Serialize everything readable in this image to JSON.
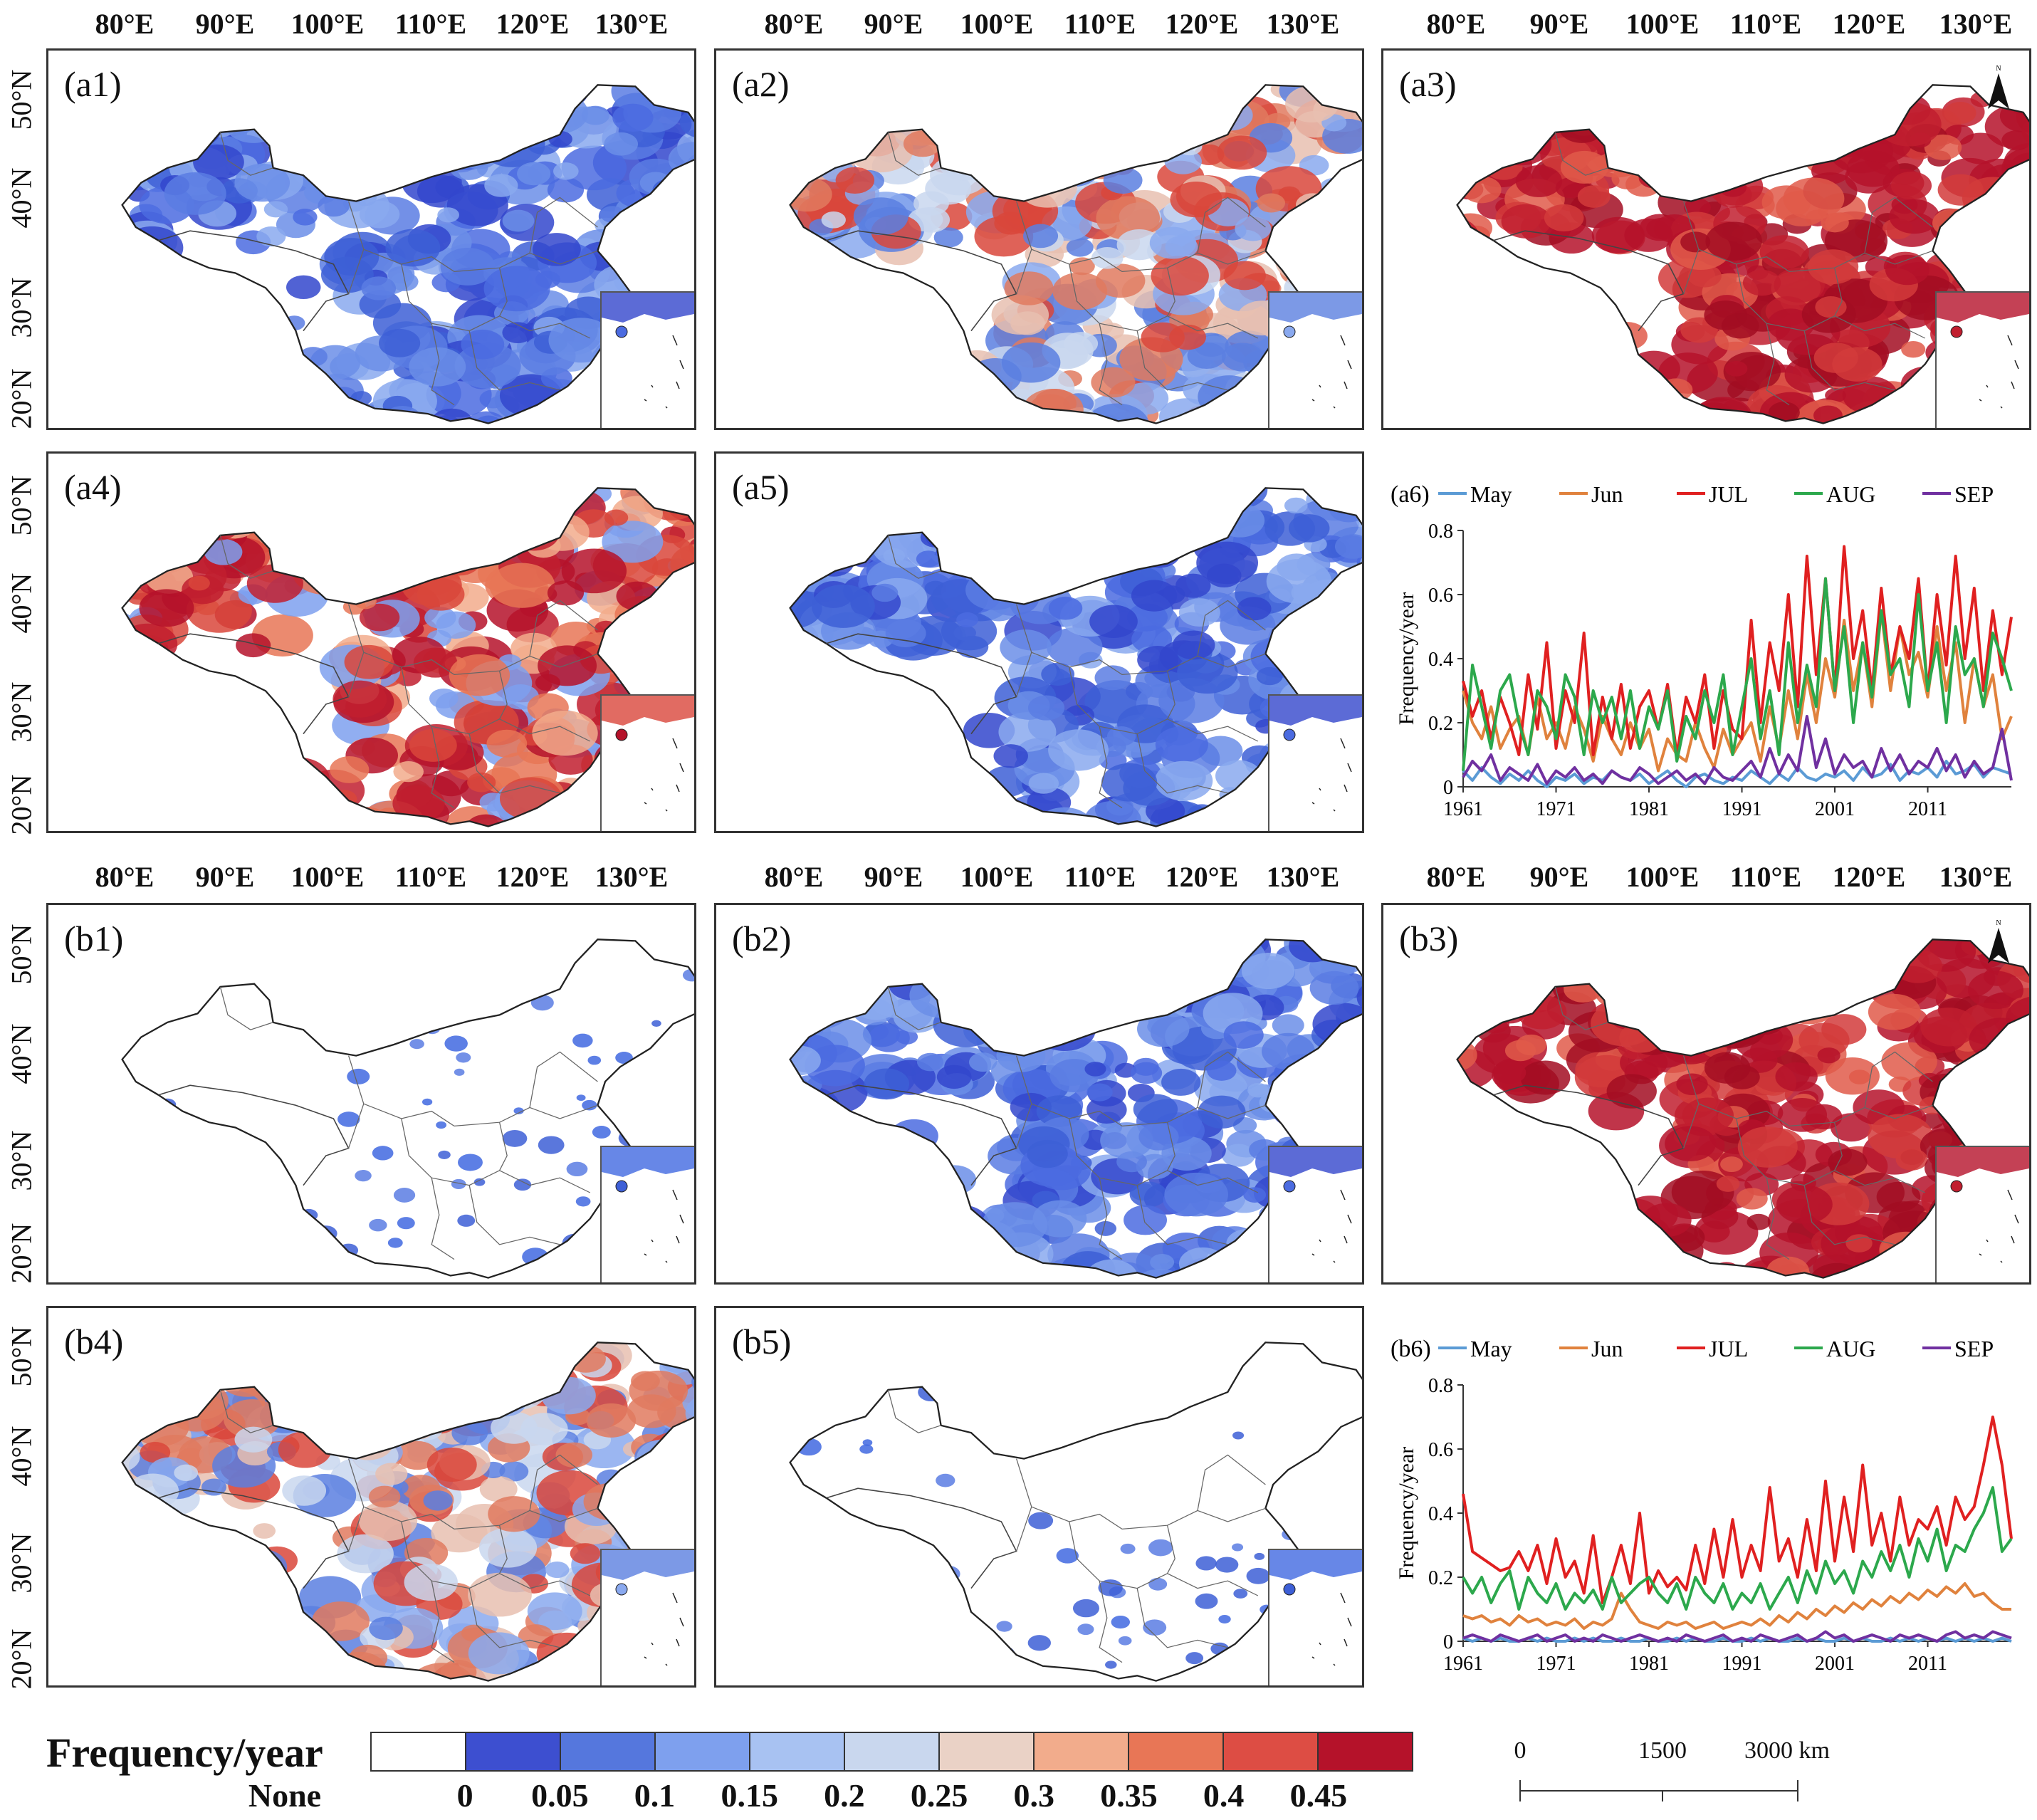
{
  "longitude_labels": [
    "80°E",
    "90°E",
    "100°E",
    "110°E",
    "120°E",
    "130°E"
  ],
  "latitude_labels": [
    "50°N",
    "40°N",
    "30°N",
    "20°N"
  ],
  "panels_a": [
    {
      "label": "(a1)",
      "theme": "blue",
      "color": "#3d5fd6"
    },
    {
      "label": "(a2)",
      "theme": "mixed",
      "color": "#e07a5f"
    },
    {
      "label": "(a3)",
      "theme": "red",
      "color": "#b5122a"
    },
    {
      "label": "(a4)",
      "theme": "mixed-red",
      "color": "#d9463b"
    },
    {
      "label": "(a5)",
      "theme": "blue",
      "color": "#3b5bd6"
    }
  ],
  "panels_b": [
    {
      "label": "(b1)",
      "theme": "sparse",
      "color": "#4169e1"
    },
    {
      "label": "(b2)",
      "theme": "blue",
      "color": "#5b7fe0"
    },
    {
      "label": "(b3)",
      "theme": "red",
      "color": "#b5122a"
    },
    {
      "label": "(b4)",
      "theme": "mixed",
      "color": "#6f8fe3"
    },
    {
      "label": "(b5)",
      "theme": "sparse",
      "color": "#3d5fd6"
    }
  ],
  "north_label": "N",
  "chart_data": [
    {
      "label": "(a6)",
      "type": "line",
      "ylabel": "Frequency/year",
      "ylim": [
        0,
        0.8
      ],
      "yticks": [
        "0",
        "0.2",
        "0.4",
        "0.6",
        "0.8"
      ],
      "xticks": [
        "1961",
        "1971",
        "1981",
        "1991",
        "2001",
        "2011"
      ],
      "x_start": 1961,
      "x_end": 2020,
      "series": [
        {
          "name": "May",
          "color": "#5b9bd5",
          "values": [
            0.05,
            0.02,
            0.06,
            0.03,
            0.01,
            0.04,
            0.02,
            0.05,
            0.02,
            0.0,
            0.03,
            0.02,
            0.04,
            0.01,
            0.03,
            0.02,
            0.05,
            0.03,
            0.02,
            0.04,
            0.01,
            0.03,
            0.05,
            0.02,
            0.0,
            0.03,
            0.04,
            0.02,
            0.01,
            0.03,
            0.02,
            0.05,
            0.03,
            0.01,
            0.04,
            0.02,
            0.06,
            0.03,
            0.02,
            0.04,
            0.03,
            0.05,
            0.02,
            0.06,
            0.03,
            0.04,
            0.07,
            0.02,
            0.05,
            0.04,
            0.06,
            0.03,
            0.08,
            0.04,
            0.05,
            0.07,
            0.03,
            0.06,
            0.05,
            0.04
          ]
        },
        {
          "name": "Jun",
          "color": "#e0823d",
          "values": [
            0.3,
            0.2,
            0.15,
            0.25,
            0.12,
            0.18,
            0.22,
            0.1,
            0.28,
            0.15,
            0.2,
            0.12,
            0.25,
            0.18,
            0.08,
            0.22,
            0.15,
            0.1,
            0.2,
            0.12,
            0.18,
            0.05,
            0.15,
            0.1,
            0.08,
            0.2,
            0.12,
            0.06,
            0.18,
            0.1,
            0.15,
            0.2,
            0.08,
            0.25,
            0.12,
            0.3,
            0.15,
            0.35,
            0.2,
            0.4,
            0.28,
            0.52,
            0.3,
            0.45,
            0.25,
            0.55,
            0.3,
            0.5,
            0.35,
            0.42,
            0.28,
            0.5,
            0.3,
            0.45,
            0.2,
            0.4,
            0.25,
            0.35,
            0.15,
            0.22
          ]
        },
        {
          "name": "JUL",
          "color": "#e02020",
          "values": [
            0.33,
            0.22,
            0.3,
            0.15,
            0.28,
            0.2,
            0.1,
            0.35,
            0.18,
            0.45,
            0.12,
            0.3,
            0.2,
            0.48,
            0.1,
            0.28,
            0.15,
            0.32,
            0.12,
            0.25,
            0.3,
            0.18,
            0.32,
            0.1,
            0.28,
            0.2,
            0.35,
            0.12,
            0.3,
            0.18,
            0.15,
            0.52,
            0.2,
            0.45,
            0.3,
            0.6,
            0.25,
            0.72,
            0.35,
            0.65,
            0.3,
            0.75,
            0.4,
            0.55,
            0.3,
            0.62,
            0.35,
            0.5,
            0.4,
            0.65,
            0.3,
            0.6,
            0.38,
            0.72,
            0.4,
            0.62,
            0.3,
            0.55,
            0.35,
            0.53
          ]
        },
        {
          "name": "AUG",
          "color": "#2ca84c",
          "values": [
            0.05,
            0.38,
            0.25,
            0.12,
            0.3,
            0.35,
            0.2,
            0.1,
            0.3,
            0.25,
            0.15,
            0.35,
            0.28,
            0.1,
            0.3,
            0.2,
            0.28,
            0.15,
            0.3,
            0.12,
            0.25,
            0.18,
            0.3,
            0.08,
            0.22,
            0.15,
            0.3,
            0.2,
            0.35,
            0.1,
            0.25,
            0.4,
            0.15,
            0.3,
            0.1,
            0.45,
            0.2,
            0.38,
            0.25,
            0.65,
            0.3,
            0.5,
            0.2,
            0.45,
            0.28,
            0.55,
            0.35,
            0.4,
            0.25,
            0.6,
            0.3,
            0.45,
            0.2,
            0.5,
            0.35,
            0.4,
            0.25,
            0.48,
            0.4,
            0.3
          ]
        },
        {
          "name": "SEP",
          "color": "#7030a0",
          "values": [
            0.03,
            0.08,
            0.05,
            0.1,
            0.02,
            0.06,
            0.04,
            0.02,
            0.07,
            0.01,
            0.05,
            0.03,
            0.06,
            0.02,
            0.04,
            0.01,
            0.05,
            0.03,
            0.02,
            0.06,
            0.04,
            0.01,
            0.03,
            0.05,
            0.02,
            0.04,
            0.01,
            0.06,
            0.03,
            0.02,
            0.05,
            0.08,
            0.03,
            0.12,
            0.04,
            0.1,
            0.05,
            0.22,
            0.06,
            0.15,
            0.04,
            0.1,
            0.06,
            0.08,
            0.03,
            0.12,
            0.05,
            0.1,
            0.04,
            0.08,
            0.06,
            0.12,
            0.05,
            0.1,
            0.03,
            0.08,
            0.04,
            0.06,
            0.18,
            0.02
          ]
        }
      ]
    },
    {
      "label": "(b6)",
      "type": "line",
      "ylabel": "Frequency/year",
      "ylim": [
        0,
        0.8
      ],
      "yticks": [
        "0",
        "0.2",
        "0.4",
        "0.6",
        "0.8"
      ],
      "xticks": [
        "1961",
        "1971",
        "1981",
        "1991",
        "2001",
        "2011"
      ],
      "x_start": 1961,
      "x_end": 2020,
      "series": [
        {
          "name": "May",
          "color": "#5b9bd5",
          "values": [
            0.01,
            0.0,
            0.01,
            0.0,
            0.01,
            0.0,
            0.0,
            0.01,
            0.0,
            0.01,
            0.0,
            0.0,
            0.01,
            0.0,
            0.01,
            0.0,
            0.0,
            0.01,
            0.0,
            0.0,
            0.01,
            0.0,
            0.0,
            0.01,
            0.0,
            0.01,
            0.0,
            0.0,
            0.01,
            0.0,
            0.0,
            0.01,
            0.0,
            0.01,
            0.0,
            0.0,
            0.01,
            0.0,
            0.01,
            0.0,
            0.0,
            0.01,
            0.0,
            0.01,
            0.0,
            0.0,
            0.01,
            0.0,
            0.01,
            0.0,
            0.01,
            0.0,
            0.01,
            0.0,
            0.01,
            0.0,
            0.01,
            0.0,
            0.01,
            0.0
          ]
        },
        {
          "name": "Jun",
          "color": "#e0823d",
          "values": [
            0.08,
            0.07,
            0.08,
            0.06,
            0.07,
            0.05,
            0.08,
            0.06,
            0.07,
            0.05,
            0.06,
            0.05,
            0.07,
            0.04,
            0.06,
            0.05,
            0.07,
            0.15,
            0.1,
            0.06,
            0.05,
            0.04,
            0.06,
            0.05,
            0.06,
            0.04,
            0.05,
            0.06,
            0.04,
            0.05,
            0.06,
            0.05,
            0.07,
            0.05,
            0.08,
            0.06,
            0.09,
            0.07,
            0.1,
            0.08,
            0.11,
            0.09,
            0.12,
            0.1,
            0.13,
            0.11,
            0.14,
            0.12,
            0.15,
            0.13,
            0.16,
            0.14,
            0.17,
            0.15,
            0.18,
            0.14,
            0.15,
            0.12,
            0.1,
            0.1
          ]
        },
        {
          "name": "JUL",
          "color": "#e02020",
          "values": [
            0.46,
            0.28,
            0.26,
            0.24,
            0.22,
            0.23,
            0.28,
            0.22,
            0.3,
            0.18,
            0.32,
            0.2,
            0.25,
            0.15,
            0.33,
            0.12,
            0.2,
            0.3,
            0.18,
            0.4,
            0.15,
            0.22,
            0.17,
            0.2,
            0.16,
            0.3,
            0.18,
            0.35,
            0.2,
            0.38,
            0.2,
            0.3,
            0.22,
            0.48,
            0.25,
            0.32,
            0.2,
            0.38,
            0.22,
            0.5,
            0.25,
            0.45,
            0.28,
            0.55,
            0.3,
            0.4,
            0.25,
            0.45,
            0.3,
            0.38,
            0.35,
            0.42,
            0.3,
            0.45,
            0.38,
            0.42,
            0.55,
            0.7,
            0.55,
            0.32
          ]
        },
        {
          "name": "AUG",
          "color": "#2ca84c",
          "values": [
            0.2,
            0.15,
            0.2,
            0.12,
            0.18,
            0.22,
            0.1,
            0.2,
            0.15,
            0.12,
            0.18,
            0.1,
            0.15,
            0.12,
            0.16,
            0.1,
            0.2,
            0.12,
            0.15,
            0.18,
            0.2,
            0.15,
            0.12,
            0.18,
            0.1,
            0.2,
            0.15,
            0.12,
            0.18,
            0.1,
            0.15,
            0.12,
            0.18,
            0.1,
            0.15,
            0.2,
            0.12,
            0.22,
            0.15,
            0.25,
            0.18,
            0.22,
            0.15,
            0.25,
            0.2,
            0.28,
            0.22,
            0.3,
            0.2,
            0.32,
            0.25,
            0.35,
            0.22,
            0.3,
            0.28,
            0.35,
            0.4,
            0.48,
            0.28,
            0.32
          ]
        },
        {
          "name": "SEP",
          "color": "#7030a0",
          "values": [
            0.01,
            0.02,
            0.01,
            0.0,
            0.02,
            0.01,
            0.0,
            0.01,
            0.02,
            0.0,
            0.01,
            0.02,
            0.0,
            0.01,
            0.0,
            0.02,
            0.01,
            0.0,
            0.01,
            0.02,
            0.01,
            0.0,
            0.01,
            0.0,
            0.02,
            0.01,
            0.0,
            0.01,
            0.02,
            0.0,
            0.01,
            0.0,
            0.02,
            0.01,
            0.0,
            0.01,
            0.02,
            0.0,
            0.01,
            0.03,
            0.01,
            0.02,
            0.0,
            0.01,
            0.02,
            0.01,
            0.0,
            0.02,
            0.01,
            0.02,
            0.01,
            0.0,
            0.02,
            0.03,
            0.01,
            0.02,
            0.01,
            0.03,
            0.02,
            0.01
          ]
        }
      ]
    }
  ],
  "legend": {
    "title": "Frequency/year",
    "colors": [
      "#ffffff",
      "#3d4fd0",
      "#5577dd",
      "#7ea0ee",
      "#a8c2f2",
      "#c9d7ee",
      "#ead2c6",
      "#f2ac8c",
      "#e87656",
      "#dd4d44",
      "#b5122a"
    ],
    "labels": [
      "None",
      "0",
      "0.05",
      "0.1",
      "0.15",
      "0.2",
      "0.25",
      "0.3",
      "0.35",
      "0.4",
      "0.45"
    ]
  },
  "scale_bar": {
    "labels": [
      "0",
      "1500",
      "3000 km"
    ]
  }
}
